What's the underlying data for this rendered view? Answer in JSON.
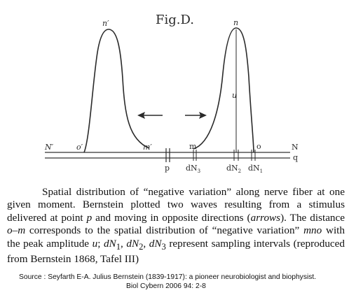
{
  "figure": {
    "title": "Fig.D.",
    "labels": {
      "n_prime_peak": "n′",
      "n_peak": "n",
      "u": "u",
      "N_prime": "N′",
      "o_prime": "o′",
      "m_prime": "m′",
      "m": "m",
      "o": "o",
      "N": "N",
      "q": "q",
      "p": "p"
    },
    "samples": [
      {
        "base": "dN",
        "sub": "3"
      },
      {
        "base": "dN",
        "sub": "2"
      },
      {
        "base": "dN",
        "sub": "1"
      }
    ],
    "arrows": [
      "left-arrow",
      "right-arrow"
    ]
  },
  "caption": {
    "segments": [
      {
        "text": "Spatial distribution of “negative variation” along nerve fiber at one given moment. Bernstein plotted two waves resulting from a stimulus delivered at point ",
        "style": "normal"
      },
      {
        "text": "p",
        "style": "italic"
      },
      {
        "text": " and moving in opposite directions (",
        "style": "normal"
      },
      {
        "text": "arrows",
        "style": "italic"
      },
      {
        "text": "). The distance ",
        "style": "normal"
      },
      {
        "text": "o–m",
        "style": "italic"
      },
      {
        "text": " corresponds to the spatial distribution of “negative variation” ",
        "style": "normal"
      },
      {
        "text": "mno",
        "style": "italic"
      },
      {
        "text": " with the peak amplitude ",
        "style": "normal"
      },
      {
        "text": "u",
        "style": "italic"
      },
      {
        "text": "; ",
        "style": "normal"
      },
      {
        "text": "dN",
        "style": "italic"
      },
      {
        "text": "1",
        "style": "sub"
      },
      {
        "text": ", ",
        "style": "normal"
      },
      {
        "text": "dN",
        "style": "italic"
      },
      {
        "text": "2",
        "style": "sub"
      },
      {
        "text": ", ",
        "style": "normal"
      },
      {
        "text": "dN",
        "style": "italic"
      },
      {
        "text": "3",
        "style": "sub"
      },
      {
        "text": " represent sampling intervals (reproduced from Bernstein 1868, Tafel III)",
        "style": "normal"
      }
    ]
  },
  "source": {
    "line1": "Source :  Seyfarth E-A.  Julius Bernstein (1839-1917): a pioneer neurobiologist and biophysist.",
    "line2": "Biol Cybern 2006 94: 2-8"
  }
}
